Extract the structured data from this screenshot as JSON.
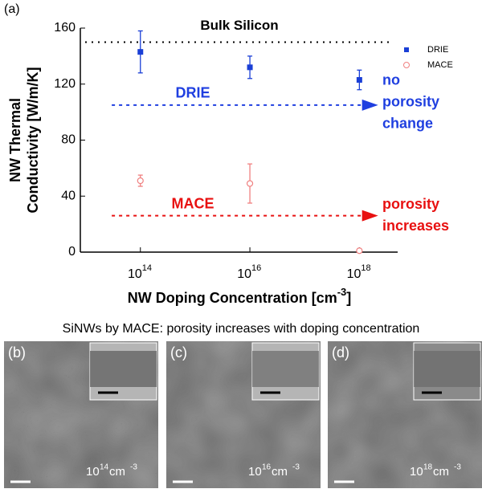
{
  "chart_data": {
    "type": "scatter",
    "panel_label": "(a)",
    "reference_line": {
      "value": 150,
      "label": "Bulk Silicon"
    },
    "x_label": {
      "text": "NW Doping Concentration [cm",
      "sup": "-3",
      "end": "]"
    },
    "y_label": [
      "NW Thermal",
      "Conductivity [W/m/K]"
    ],
    "log_x": true,
    "xlim": [
      8000000000000.0,
      5e+18
    ],
    "xticks": [
      {
        "value": 100000000000000.0,
        "label": "10",
        "sup": "14"
      },
      {
        "value": 1e+16,
        "label": "10",
        "sup": "16"
      },
      {
        "value": 1e+18,
        "label": "10",
        "sup": "18"
      }
    ],
    "ylim": [
      0,
      160
    ],
    "yticks": [
      0,
      40,
      80,
      120,
      160
    ],
    "legend": "top-right",
    "series": [
      {
        "name": "DRIE",
        "color": "#1a3fd6",
        "marker": "square",
        "x": [
          100000000000000.0,
          1e+16,
          1e+18
        ],
        "values": [
          143,
          132,
          123
        ],
        "errors": [
          15,
          8,
          7
        ]
      },
      {
        "name": "MACE",
        "color": "#f08080",
        "marker": "open-circle",
        "x": [
          100000000000000.0,
          1e+16,
          1e+18
        ],
        "values": [
          51,
          49,
          1
        ],
        "errors": [
          4,
          14,
          1
        ]
      }
    ],
    "annotations": [
      {
        "text": "DRIE",
        "color": "#1f3fe0",
        "lines": [
          "no",
          "porosity",
          "change"
        ],
        "arrow_y": 105,
        "arrow_x": [
          30000000000000.0,
          2.2e+18
        ]
      },
      {
        "text": "MACE",
        "color": "#e81010",
        "lines": [
          "porosity",
          "increases"
        ],
        "arrow_y": 26,
        "arrow_x": [
          30000000000000.0,
          2.2e+18
        ]
      }
    ]
  },
  "images": {
    "caption": "SiNWs by MACE: porosity increases with doping concentration",
    "panels": [
      {
        "label": "(b)",
        "conc": "10",
        "sup": "14",
        "unit": " cm",
        "unit_sup": "-3"
      },
      {
        "label": "(c)",
        "conc": "10",
        "sup": "16",
        "unit": " cm",
        "unit_sup": "-3"
      },
      {
        "label": "(d)",
        "conc": "10",
        "sup": "18",
        "unit": " cm",
        "unit_sup": "-3"
      }
    ]
  }
}
